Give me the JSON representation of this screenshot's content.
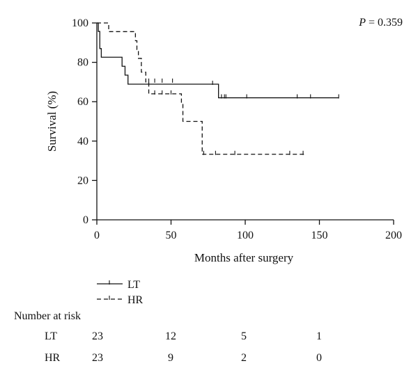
{
  "chart_data": {
    "type": "line",
    "subtype": "kaplan-meier",
    "title": "",
    "xlabel": "Months after surgery",
    "ylabel": "Survival (%)",
    "xlim": [
      0,
      200
    ],
    "ylim": [
      0,
      100
    ],
    "xticks": [
      0,
      50,
      100,
      150,
      200
    ],
    "yticks": [
      0,
      20,
      40,
      60,
      80,
      100
    ],
    "grid": false,
    "legend_placement": "bottom-left",
    "annotation": {
      "p_prefix": "P",
      "p_value": "= 0.359"
    },
    "series": [
      {
        "name": "LT",
        "line_style": "solid",
        "steps": [
          [
            0,
            100
          ],
          [
            1,
            95.7
          ],
          [
            2,
            87
          ],
          [
            3,
            82.6
          ],
          [
            16,
            82.6
          ],
          [
            17,
            78
          ],
          [
            19,
            73.5
          ],
          [
            21,
            68.9
          ],
          [
            82,
            68.9
          ],
          [
            82,
            62
          ],
          [
            163,
            62
          ]
        ],
        "censored": [
          [
            78,
            68.9
          ],
          [
            84,
            62
          ],
          [
            86,
            62
          ],
          [
            87,
            62
          ],
          [
            101,
            62
          ],
          [
            135,
            62
          ],
          [
            144,
            62
          ],
          [
            163,
            62
          ]
        ]
      },
      {
        "name": "HR",
        "line_style": "dashed",
        "steps": [
          [
            0,
            100
          ],
          [
            7,
            100
          ],
          [
            8,
            95.6
          ],
          [
            25,
            95.6
          ],
          [
            26,
            91
          ],
          [
            27,
            86.5
          ],
          [
            28,
            82
          ],
          [
            30,
            75
          ],
          [
            33,
            70
          ],
          [
            35,
            64
          ],
          [
            56,
            64
          ],
          [
            57,
            59
          ],
          [
            58,
            50
          ],
          [
            70,
            50
          ],
          [
            71,
            33.3
          ],
          [
            141,
            33.3
          ]
        ],
        "censored": [
          [
            35,
            70
          ],
          [
            39,
            70
          ],
          [
            44,
            70
          ],
          [
            51,
            70
          ],
          [
            39,
            64
          ],
          [
            44,
            64
          ],
          [
            50,
            64
          ],
          [
            72,
            33.3
          ],
          [
            80,
            33.3
          ],
          [
            93,
            33.3
          ],
          [
            130,
            33.3
          ],
          [
            139,
            33.3
          ]
        ]
      }
    ],
    "risk_table": {
      "title": "Number at risk",
      "times": [
        0,
        50,
        100,
        150
      ],
      "rows": [
        {
          "label": "LT",
          "values": [
            "23",
            "12",
            "5",
            "1"
          ]
        },
        {
          "label": "HR",
          "values": [
            "23",
            "9",
            "2",
            "0"
          ]
        }
      ]
    }
  }
}
